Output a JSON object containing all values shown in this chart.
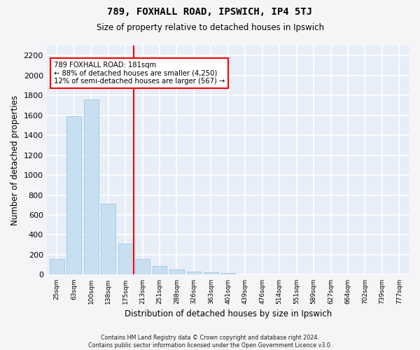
{
  "title": "789, FOXHALL ROAD, IPSWICH, IP4 5TJ",
  "subtitle": "Size of property relative to detached houses in Ipswich",
  "xlabel": "Distribution of detached houses by size in Ipswich",
  "ylabel": "Number of detached properties",
  "footer_line1": "Contains HM Land Registry data © Crown copyright and database right 2024.",
  "footer_line2": "Contains public sector information licensed under the Open Government Licence v3.0.",
  "bar_color": "#c8dff2",
  "bar_edge_color": "#a0c4e8",
  "bg_color": "#e8eef8",
  "grid_color": "#ffffff",
  "fig_bg_color": "#f5f5f8",
  "annotation_line1": "789 FOXHALL ROAD: 181sqm",
  "annotation_line2": "← 88% of detached houses are smaller (4,250)",
  "annotation_line3": "12% of semi-detached houses are larger (567) →",
  "red_line_index": 4.5,
  "categories": [
    "25sqm",
    "63sqm",
    "100sqm",
    "138sqm",
    "175sqm",
    "213sqm",
    "251sqm",
    "288sqm",
    "326sqm",
    "363sqm",
    "401sqm",
    "439sqm",
    "476sqm",
    "514sqm",
    "551sqm",
    "589sqm",
    "627sqm",
    "664sqm",
    "702sqm",
    "739sqm",
    "777sqm"
  ],
  "values": [
    155,
    1590,
    1760,
    710,
    315,
    160,
    90,
    55,
    30,
    22,
    15,
    0,
    0,
    0,
    0,
    0,
    0,
    0,
    0,
    0,
    0
  ],
  "ylim": [
    0,
    2300
  ],
  "yticks": [
    0,
    200,
    400,
    600,
    800,
    1000,
    1200,
    1400,
    1600,
    1800,
    2000,
    2200
  ]
}
